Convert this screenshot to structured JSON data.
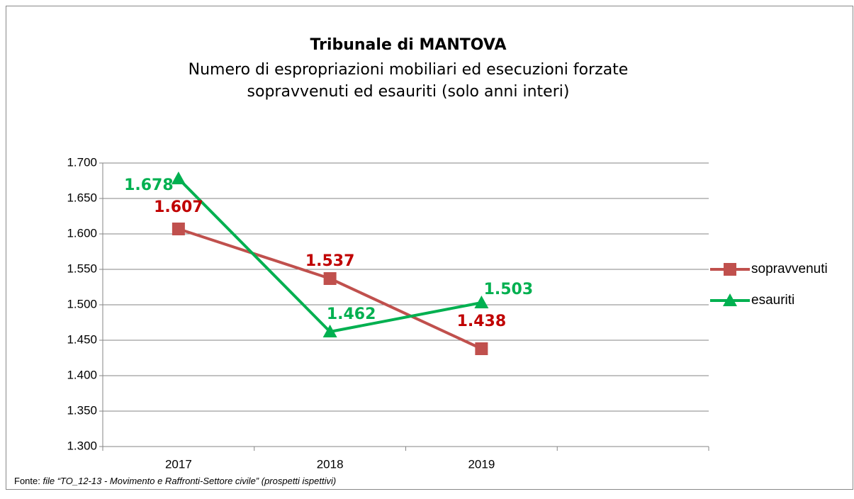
{
  "chart_data": {
    "type": "line",
    "title": "Tribunale di MANTOVA",
    "subtitle": [
      "Numero di espropriazioni mobiliari ed esecuzioni forzate",
      "sopravvenuti ed esauriti (solo anni interi)"
    ],
    "categories": [
      "2017",
      "2018",
      "2019",
      null
    ],
    "series": [
      {
        "name": "sopravvenuti",
        "color": "#c0504d",
        "label_color": "#c00000",
        "marker": "square",
        "values": [
          1607,
          1537,
          1438,
          null
        ],
        "value_labels": [
          "1.607",
          "1.537",
          "1.438",
          null
        ]
      },
      {
        "name": "esauriti",
        "color": "#00b050",
        "label_color": "#00b050",
        "marker": "triangle",
        "values": [
          1678,
          1462,
          1503,
          null
        ],
        "value_labels": [
          "1.678",
          "1.462",
          "1.503",
          null
        ]
      }
    ],
    "ylim": [
      1300,
      1700
    ],
    "yticks": [
      {
        "value": 1300,
        "label": "1.300"
      },
      {
        "value": 1350,
        "label": "1.350"
      },
      {
        "value": 1400,
        "label": "1.400"
      },
      {
        "value": 1450,
        "label": "1.450"
      },
      {
        "value": 1500,
        "label": "1.500"
      },
      {
        "value": 1550,
        "label": "1.550"
      },
      {
        "value": 1600,
        "label": "1.600"
      },
      {
        "value": 1650,
        "label": "1.650"
      },
      {
        "value": 1700,
        "label": "1.700"
      }
    ],
    "grid": true,
    "legend": "right",
    "source_prefix": "Fonte:",
    "source": "file “TO_12-13 - Movimento e Raffronti-Settore civile” (prospetti ispettivi)"
  }
}
